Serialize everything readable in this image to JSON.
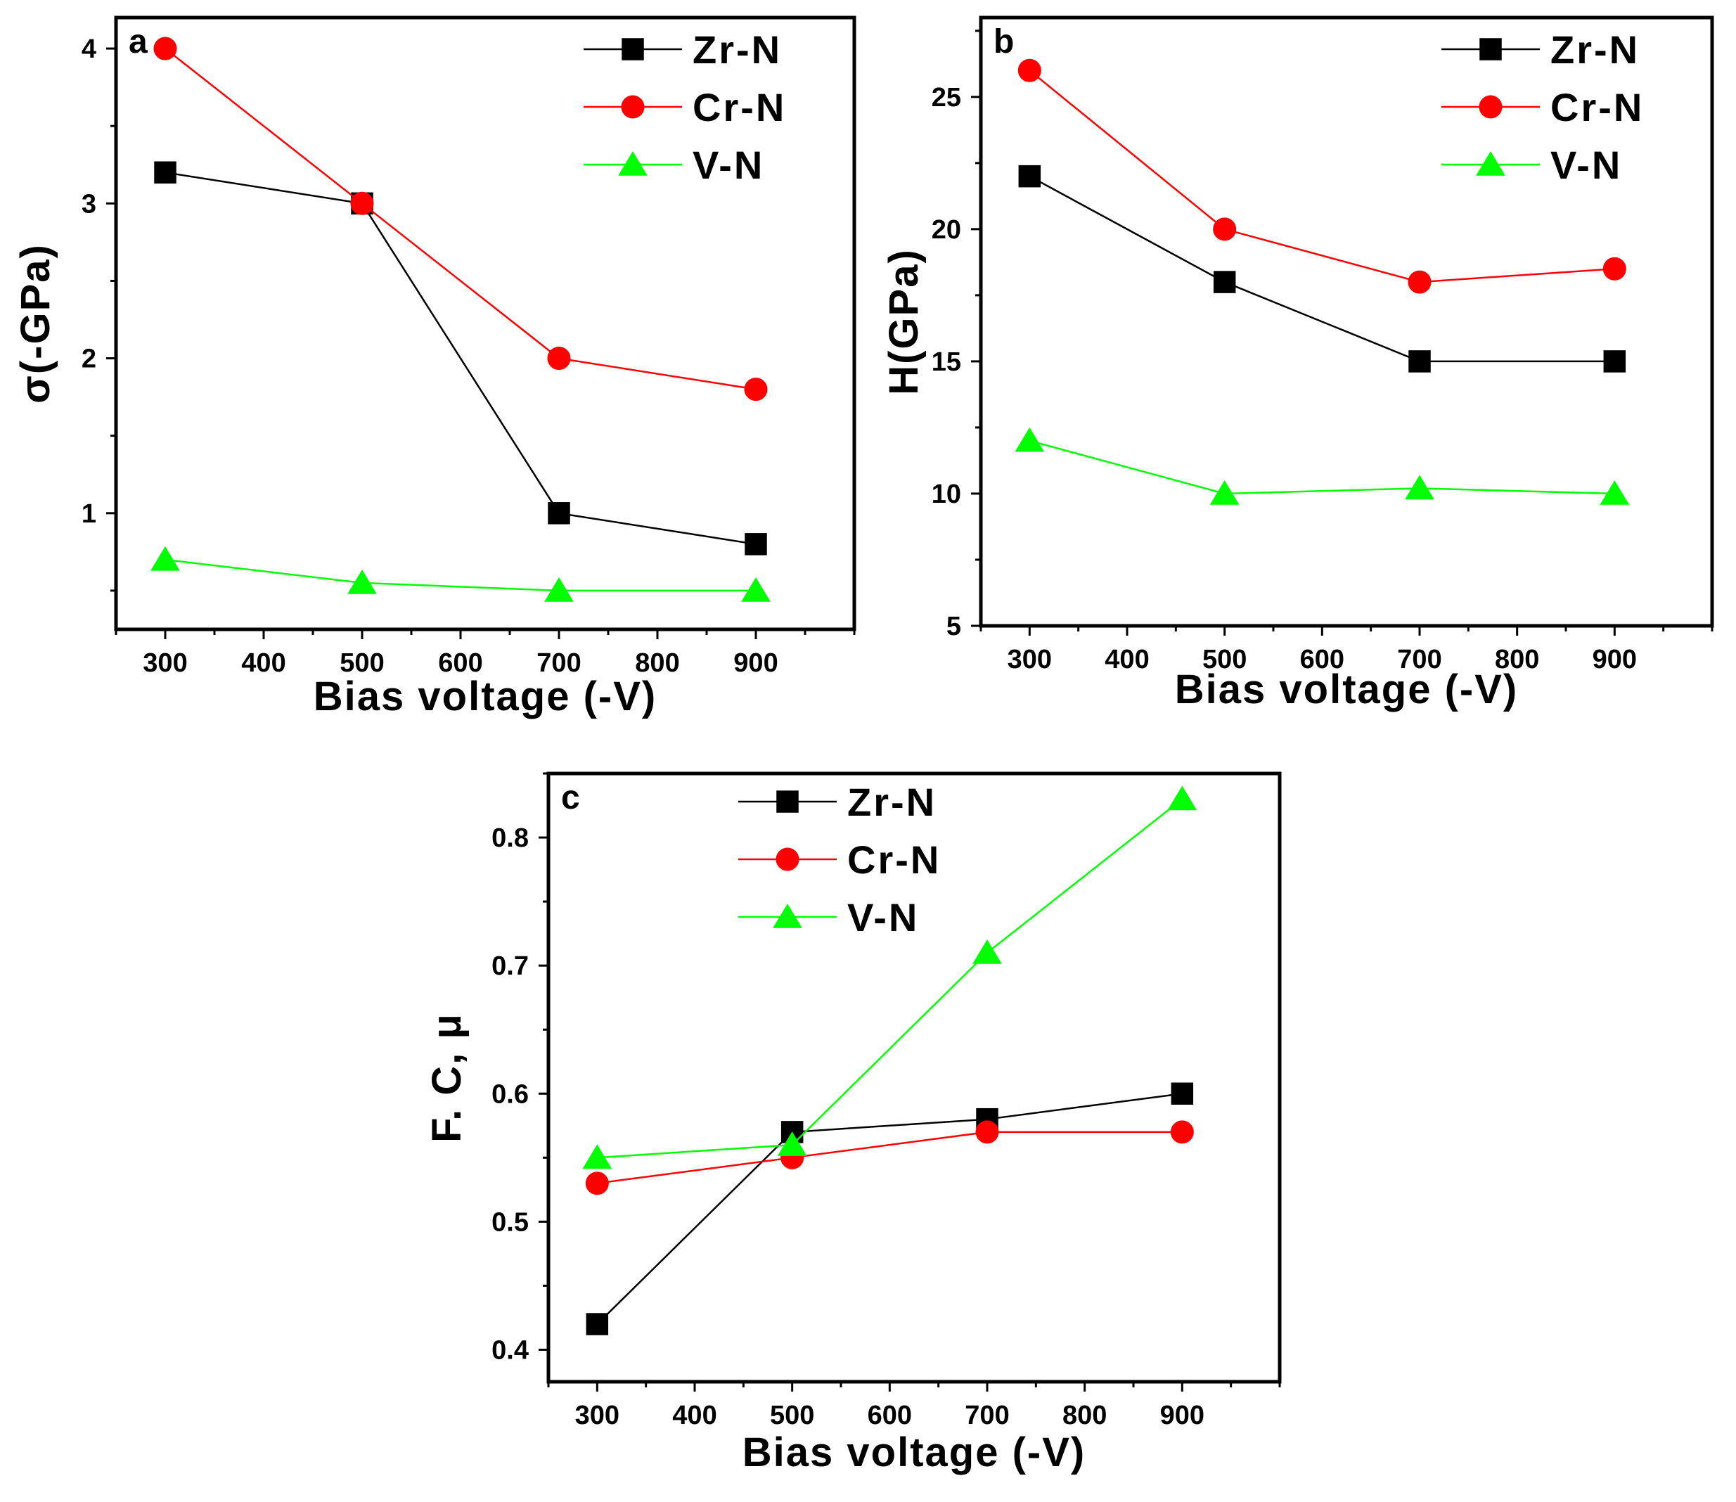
{
  "chart_data": [
    {
      "type": "line",
      "panel_label": "a",
      "x": [
        300,
        500,
        700,
        900
      ],
      "xlim": [
        250,
        1000
      ],
      "xticks": [
        300,
        400,
        500,
        600,
        700,
        800,
        900
      ],
      "xtick_labels": [
        "300",
        "400",
        "500",
        "600",
        "700",
        "800",
        "900"
      ],
      "ylim": [
        0.25,
        4.2
      ],
      "yticks": [
        1,
        2,
        3,
        4
      ],
      "ytick_labels": [
        "1",
        "2",
        "3",
        "4"
      ],
      "xlabel": "Bias voltage (-V)",
      "ylabel": "σ(-GPa)",
      "legend_position": "top-right",
      "series": [
        {
          "name": "Zr-N",
          "marker": "square",
          "color": "#000000",
          "values": [
            3.2,
            3.0,
            1.0,
            0.8
          ]
        },
        {
          "name": "Cr-N",
          "marker": "circle",
          "color": "#ff0000",
          "values": [
            4.0,
            3.0,
            2.0,
            1.8
          ]
        },
        {
          "name": "V-N",
          "marker": "triangle",
          "color": "#00ff00",
          "values": [
            0.7,
            0.55,
            0.5,
            0.5
          ]
        }
      ]
    },
    {
      "type": "line",
      "panel_label": "b",
      "x": [
        300,
        500,
        700,
        900
      ],
      "xlim": [
        250,
        1000
      ],
      "xticks": [
        300,
        400,
        500,
        600,
        700,
        800,
        900
      ],
      "xtick_labels": [
        "300",
        "400",
        "500",
        "600",
        "700",
        "800",
        "900"
      ],
      "ylim": [
        5,
        28
      ],
      "yticks": [
        5,
        10,
        15,
        20,
        25
      ],
      "ytick_labels": [
        "5",
        "10",
        "15",
        "20",
        "25"
      ],
      "xlabel": "Bias voltage (-V)",
      "ylabel": "H(GPa)",
      "legend_position": "top-right",
      "series": [
        {
          "name": "Zr-N",
          "marker": "square",
          "color": "#000000",
          "values": [
            22,
            18,
            15,
            15
          ]
        },
        {
          "name": "Cr-N",
          "marker": "circle",
          "color": "#ff0000",
          "values": [
            26,
            20,
            18,
            18.5
          ]
        },
        {
          "name": "V-N",
          "marker": "triangle",
          "color": "#00ff00",
          "values": [
            12,
            10,
            10.2,
            10
          ]
        }
      ]
    },
    {
      "type": "line",
      "panel_label": "c",
      "x": [
        300,
        500,
        700,
        900
      ],
      "xlim": [
        250,
        1000
      ],
      "xticks": [
        300,
        400,
        500,
        600,
        700,
        800,
        900
      ],
      "xtick_labels": [
        "300",
        "400",
        "500",
        "600",
        "700",
        "800",
        "900"
      ],
      "ylim": [
        0.375,
        0.85
      ],
      "yticks": [
        0.4,
        0.5,
        0.6,
        0.7,
        0.8
      ],
      "ytick_labels": [
        "0.4",
        "0.5",
        "0.6",
        "0.7",
        "0.8"
      ],
      "xlabel": "Bias voltage (-V)",
      "ylabel": "F. C, μ",
      "legend_position": "top-center",
      "series": [
        {
          "name": "Zr-N",
          "marker": "square",
          "color": "#000000",
          "values": [
            0.42,
            0.57,
            0.58,
            0.6
          ]
        },
        {
          "name": "Cr-N",
          "marker": "circle",
          "color": "#ff0000",
          "values": [
            0.53,
            0.55,
            0.57,
            0.57
          ]
        },
        {
          "name": "V-N",
          "marker": "triangle",
          "color": "#00ff00",
          "values": [
            0.55,
            0.56,
            0.71,
            0.83
          ]
        }
      ]
    }
  ]
}
